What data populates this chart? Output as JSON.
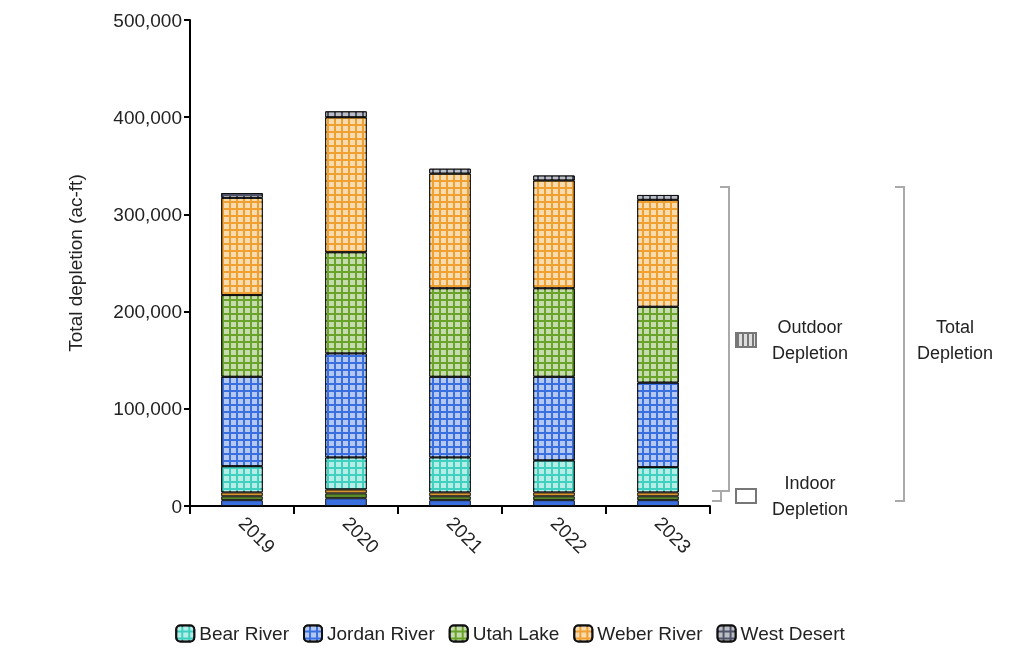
{
  "chart_data": {
    "type": "bar",
    "stacked": true,
    "ylabel": "Total depletion (ac-ft)",
    "categories": [
      "2019",
      "2020",
      "2021",
      "2022",
      "2023"
    ],
    "ylim": [
      0,
      500000
    ],
    "yticks": [
      0,
      {
        "value": 100000,
        "label": "100,000"
      },
      {
        "value": 200000,
        "label": "200,000"
      },
      {
        "value": 300000,
        "label": "300,000"
      },
      {
        "value": 400000,
        "label": "400,000"
      },
      {
        "value": 500000,
        "label": "500,000"
      }
    ],
    "grid": false,
    "legend": "bottom",
    "series": [
      {
        "color": "#3a6fe0",
        "values": [
          6000,
          8000,
          6000,
          6000,
          6000
        ]
      },
      {
        "color": "#5a8a2a",
        "values": [
          4000,
          5000,
          4000,
          4000,
          4000
        ]
      },
      {
        "color": "#d9962e",
        "values": [
          4000,
          4000,
          4000,
          4000,
          4000
        ]
      },
      {
        "name": "Bear River",
        "color": "#40d0c0",
        "values": [
          27000,
          33000,
          36000,
          33000,
          26000
        ]
      },
      {
        "name": "Jordan River",
        "color": "#3a6fe0",
        "values": [
          92000,
          107000,
          83000,
          86000,
          87000
        ]
      },
      {
        "name": "Utah Lake",
        "color": "#6aa32a",
        "values": [
          84000,
          104000,
          91000,
          91000,
          78000
        ]
      },
      {
        "name": "Weber River",
        "color": "#f0a030",
        "values": [
          100000,
          139000,
          118000,
          111000,
          110000
        ]
      },
      {
        "name": "West Desert",
        "color": "#505468",
        "values": [
          5000,
          6000,
          5000,
          5000,
          5000
        ]
      }
    ],
    "annotations": [
      "Outdoor Depletion",
      "Indoor Depletion",
      "Total Depletion"
    ]
  }
}
